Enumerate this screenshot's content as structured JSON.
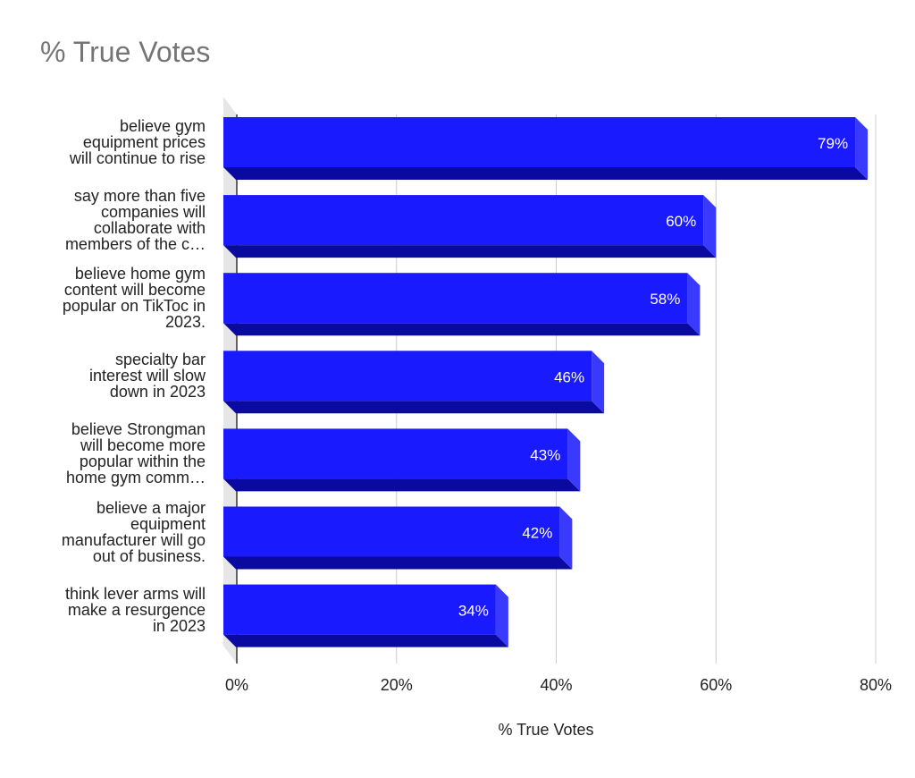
{
  "chart_data": {
    "type": "bar",
    "orientation": "horizontal",
    "title": "% True Votes",
    "xlabel": "% True Votes",
    "xlim": [
      0,
      80
    ],
    "xticks": [
      0,
      20,
      40,
      60,
      80
    ],
    "tick_suffix": "%",
    "grid": true,
    "style": "3d",
    "bar_color": "#1a1aff",
    "bar_bottom_color": "#0a0aa0",
    "bar_side_color": "#3a3aff",
    "categories": [
      [
        "believe gym",
        "equipment prices",
        "will continue to rise"
      ],
      [
        "say more than five",
        "companies will",
        "collaborate with",
        "members of the c…"
      ],
      [
        "believe home gym",
        "content will become",
        "popular on TikToc in",
        "2023."
      ],
      [
        "specialty bar",
        "interest will slow",
        "down in 2023"
      ],
      [
        "believe Strongman",
        "will become more",
        "popular within the",
        "home gym comm…"
      ],
      [
        "believe a major",
        "equipment",
        "manufacturer will go",
        "out of business."
      ],
      [
        "think lever arms will",
        "make a resurgence",
        "in 2023"
      ]
    ],
    "values": [
      79,
      60,
      58,
      46,
      43,
      42,
      34
    ],
    "data_labels": [
      "79%",
      "60%",
      "58%",
      "46%",
      "43%",
      "42%",
      "34%"
    ]
  }
}
